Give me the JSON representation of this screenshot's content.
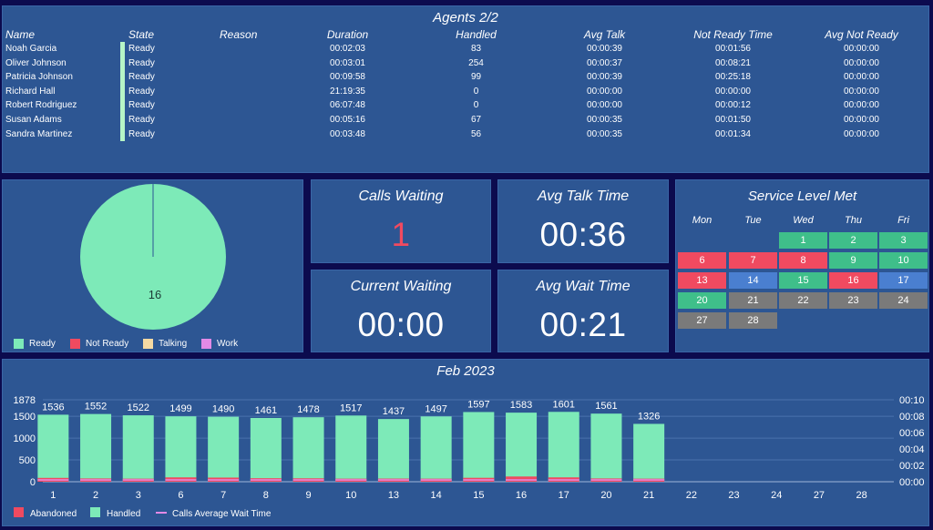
{
  "agents": {
    "title": "Agents 2/2",
    "columns": [
      "Name",
      "State",
      "Reason",
      "Duration",
      "Handled",
      "Avg Talk",
      "Not Ready Time",
      "Avg Not Ready"
    ],
    "rows": [
      {
        "name": "Noah Garcia",
        "state": "Ready",
        "reason": "",
        "duration": "00:02:03",
        "handled": "83",
        "avg_talk": "00:00:39",
        "not_ready_time": "00:01:56",
        "avg_not_ready": "00:00:00"
      },
      {
        "name": "Oliver Johnson",
        "state": "Ready",
        "reason": "",
        "duration": "00:03:01",
        "handled": "254",
        "avg_talk": "00:00:37",
        "not_ready_time": "00:08:21",
        "avg_not_ready": "00:00:00"
      },
      {
        "name": "Patricia Johnson",
        "state": "Ready",
        "reason": "",
        "duration": "00:09:58",
        "handled": "99",
        "avg_talk": "00:00:39",
        "not_ready_time": "00:25:18",
        "avg_not_ready": "00:00:00"
      },
      {
        "name": "Richard Hall",
        "state": "Ready",
        "reason": "",
        "duration": "21:19:35",
        "handled": "0",
        "avg_talk": "00:00:00",
        "not_ready_time": "00:00:00",
        "avg_not_ready": "00:00:00"
      },
      {
        "name": "Robert Rodriguez",
        "state": "Ready",
        "reason": "",
        "duration": "06:07:48",
        "handled": "0",
        "avg_talk": "00:00:00",
        "not_ready_time": "00:00:12",
        "avg_not_ready": "00:00:00"
      },
      {
        "name": "Susan Adams",
        "state": "Ready",
        "reason": "",
        "duration": "00:05:16",
        "handled": "67",
        "avg_talk": "00:00:35",
        "not_ready_time": "00:01:50",
        "avg_not_ready": "00:00:00"
      },
      {
        "name": "Sandra Martinez",
        "state": "Ready",
        "reason": "",
        "duration": "00:03:48",
        "handled": "56",
        "avg_talk": "00:00:35",
        "not_ready_time": "00:01:34",
        "avg_not_ready": "00:00:00"
      }
    ]
  },
  "pie": {
    "slice_label": "16",
    "legend": [
      {
        "label": "Ready",
        "color": "#7deab8"
      },
      {
        "label": "Not Ready",
        "color": "#f04a60"
      },
      {
        "label": "Talking",
        "color": "#f4d9a3"
      },
      {
        "label": "Work",
        "color": "#e38ae6"
      }
    ]
  },
  "kpis": {
    "calls_waiting": {
      "title": "Calls Waiting",
      "value": "1"
    },
    "avg_talk_time": {
      "title": "Avg Talk Time",
      "value": "00:36"
    },
    "current_waiting": {
      "title": "Current Waiting",
      "value": "00:00"
    },
    "avg_wait_time": {
      "title": "Avg Wait Time",
      "value": "00:21"
    }
  },
  "calendar": {
    "title": "Service Level Met",
    "days_of_week": [
      "Mon",
      "Tue",
      "Wed",
      "Thu",
      "Fri"
    ],
    "days": [
      {
        "day": "1",
        "status": "met"
      },
      {
        "day": "2",
        "status": "met"
      },
      {
        "day": "3",
        "status": "met"
      },
      {
        "day": "6",
        "status": "missed"
      },
      {
        "day": "7",
        "status": "missed"
      },
      {
        "day": "8",
        "status": "missed"
      },
      {
        "day": "9",
        "status": "met"
      },
      {
        "day": "10",
        "status": "met"
      },
      {
        "day": "13",
        "status": "missed"
      },
      {
        "day": "14",
        "status": "partial"
      },
      {
        "day": "15",
        "status": "met"
      },
      {
        "day": "16",
        "status": "missed"
      },
      {
        "day": "17",
        "status": "partial"
      },
      {
        "day": "20",
        "status": "met"
      },
      {
        "day": "21",
        "status": "none"
      },
      {
        "day": "22",
        "status": "none"
      },
      {
        "day": "23",
        "status": "none"
      },
      {
        "day": "24",
        "status": "none"
      },
      {
        "day": "27",
        "status": "none"
      },
      {
        "day": "28",
        "status": "none"
      }
    ],
    "colors": {
      "met": "#3fbf8a",
      "missed": "#f04a60",
      "partial": "#4a7fd0",
      "none": "#7a7a7a"
    }
  },
  "chart_data": {
    "type": "bar",
    "title": "Feb 2023",
    "categories": [
      "1",
      "2",
      "3",
      "6",
      "7",
      "8",
      "9",
      "10",
      "13",
      "14",
      "15",
      "16",
      "17",
      "20",
      "21",
      "22",
      "23",
      "24",
      "27",
      "28"
    ],
    "series": [
      {
        "name": "Handled",
        "color": "#7deab8",
        "values": [
          1536,
          1552,
          1522,
          1499,
          1490,
          1461,
          1478,
          1517,
          1437,
          1497,
          1597,
          1583,
          1601,
          1561,
          1326,
          0,
          0,
          0,
          0,
          0
        ]
      },
      {
        "name": "Abandoned",
        "color": "#f04a60",
        "values": [
          88,
          75,
          70,
          100,
          95,
          80,
          78,
          70,
          72,
          70,
          90,
          120,
          100,
          75,
          70,
          0,
          0,
          0,
          0,
          0
        ]
      },
      {
        "name": "Calls Average Wait Time",
        "color": "#e38ae6",
        "values": [
          "00:00",
          "00:00",
          "00:00",
          "00:00",
          "00:00",
          "00:00",
          "00:00",
          "00:00",
          "00:00",
          "00:00",
          "00:00",
          "00:00",
          "00:00",
          "00:00",
          "00:00",
          "",
          "",
          "",
          "",
          ""
        ]
      }
    ],
    "total_labels": [
      "1536",
      "1552",
      "1522",
      "1499",
      "1490",
      "1461",
      "1478",
      "1517",
      "1437",
      "1497",
      "1597",
      "1583",
      "1601",
      "1561",
      "1326",
      "",
      "",
      "",
      "",
      ""
    ],
    "ylim": [
      0,
      1878
    ],
    "yticks": [
      "0",
      "500",
      "1000",
      "1500",
      "1878"
    ],
    "y2ticks": [
      "00:00",
      "00:02",
      "00:04",
      "00:06",
      "00:08",
      "00:10"
    ],
    "legend": [
      "Abandoned",
      "Handled",
      "Calls Average Wait Time"
    ]
  }
}
